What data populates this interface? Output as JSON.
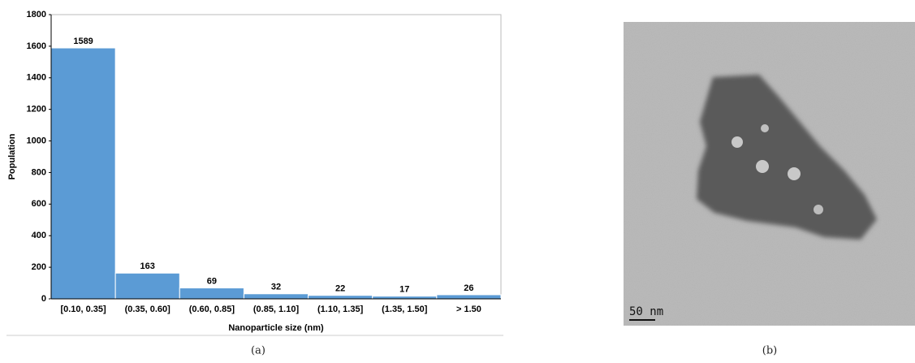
{
  "chart_data": {
    "type": "bar",
    "x_label": "Nanoparticle size (nm)",
    "y_label": "Population",
    "categories": [
      "[0.10, 0.35]",
      "(0.35, 0.60]",
      "(0.60, 0.85]",
      "(0.85, 1.10]",
      "(1.10, 1.35]",
      "(1.35, 1.50]",
      "> 1.50"
    ],
    "values": [
      1589,
      163,
      69,
      32,
      22,
      17,
      26
    ],
    "color": "#5b9bd5",
    "ylim": [
      0,
      1800
    ],
    "yticks": [
      0,
      200,
      400,
      600,
      800,
      1000,
      1200,
      1400,
      1600,
      1800
    ]
  },
  "figure": {
    "captions": [
      "(a)",
      "(b)"
    ],
    "scale_bar": "50 nm"
  }
}
